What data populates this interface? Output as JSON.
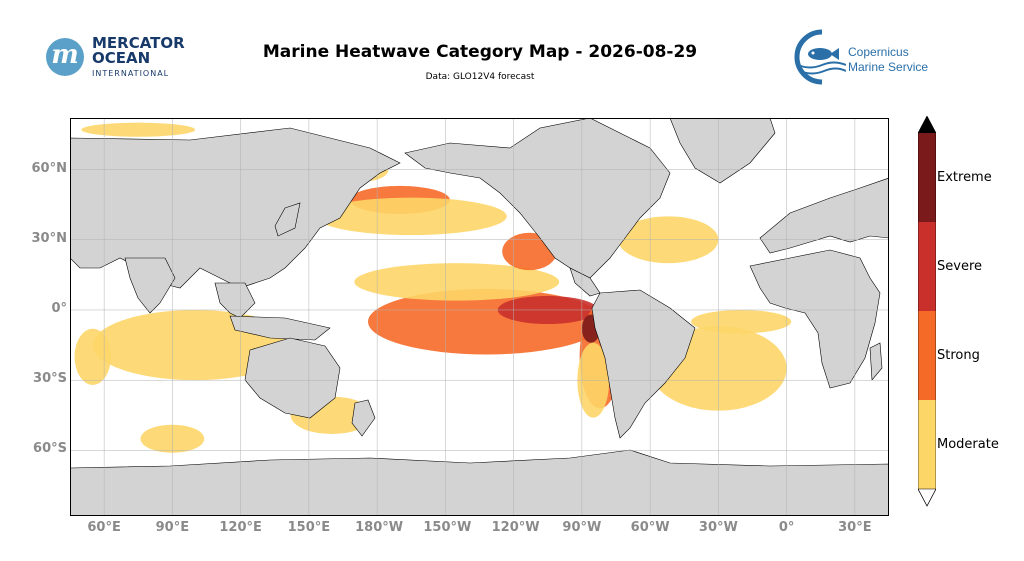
{
  "header": {
    "title": "Marine Heatwave Category Map - 2026-08-29",
    "subtitle": "Data: GLO12V4 forecast"
  },
  "logos": {
    "mercator": {
      "line1": "MERCATOR",
      "line2": "OCEAN",
      "line3": "INTERNATIONAL",
      "mark": "m"
    },
    "copernicus": {
      "line1": "Copernicus",
      "line2": "Marine Service"
    }
  },
  "map": {
    "projection": "equirectangular",
    "lon_range": [
      45,
      60
    ],
    "lat_range": [
      -80,
      80
    ],
    "land_color": "#d3d3d3",
    "ocean_color": "#ffffff",
    "lat_ticks": [
      {
        "value": 60,
        "label": "60°N"
      },
      {
        "value": 30,
        "label": "30°N"
      },
      {
        "value": 0,
        "label": "0°"
      },
      {
        "value": -30,
        "label": "30°S"
      },
      {
        "value": -60,
        "label": "60°S"
      }
    ],
    "lon_ticks": [
      {
        "value": 60,
        "label": "60°E"
      },
      {
        "value": 90,
        "label": "90°E"
      },
      {
        "value": 120,
        "label": "120°E"
      },
      {
        "value": 150,
        "label": "150°E"
      },
      {
        "value": 180,
        "label": "180°W"
      },
      {
        "value": 210,
        "label": "150°W"
      },
      {
        "value": 240,
        "label": "120°W"
      },
      {
        "value": 270,
        "label": "90°W"
      },
      {
        "value": 300,
        "label": "60°W"
      },
      {
        "value": 330,
        "label": "30°W"
      },
      {
        "value": 360,
        "label": "0°"
      },
      {
        "value": 390,
        "label": "30°E"
      }
    ],
    "heatwave_regions": [
      {
        "lon": 228,
        "lat": -5,
        "rlon": 52,
        "rlat": 14,
        "cat": 2
      },
      {
        "lon": 215,
        "lat": 12,
        "rlon": 45,
        "rlat": 8,
        "cat": 1
      },
      {
        "lon": 255,
        "lat": 0,
        "rlon": 22,
        "rlat": 6,
        "cat": 3
      },
      {
        "lon": 278,
        "lat": -20,
        "rlon": 9,
        "rlat": 22,
        "cat": 2
      },
      {
        "lon": 274,
        "lat": -8,
        "rlon": 4,
        "rlat": 6,
        "cat": 4
      },
      {
        "lon": 275,
        "lat": -30,
        "rlon": 7,
        "rlat": 16,
        "cat": 1
      },
      {
        "lon": 190,
        "lat": 47,
        "rlon": 22,
        "rlat": 6,
        "cat": 2
      },
      {
        "lon": 195,
        "lat": 40,
        "rlon": 42,
        "rlat": 8,
        "cat": 1
      },
      {
        "lon": 247,
        "lat": 25,
        "rlon": 12,
        "rlat": 8,
        "cat": 2
      },
      {
        "lon": 308,
        "lat": 30,
        "rlon": 22,
        "rlat": 10,
        "cat": 1
      },
      {
        "lon": 375,
        "lat": 38,
        "rlon": 8,
        "rlat": 3,
        "cat": 2
      },
      {
        "lon": 290,
        "lat": 62,
        "rlon": 10,
        "rlat": 8,
        "cat": 1
      },
      {
        "lon": 100,
        "lat": -15,
        "rlon": 45,
        "rlat": 15,
        "cat": 1
      },
      {
        "lon": 55,
        "lat": -20,
        "rlon": 8,
        "rlat": 12,
        "cat": 1
      },
      {
        "lon": 90,
        "lat": -55,
        "rlon": 14,
        "rlat": 6,
        "cat": 1
      },
      {
        "lon": 330,
        "lat": -25,
        "rlon": 30,
        "rlat": 18,
        "cat": 1
      },
      {
        "lon": 340,
        "lat": -5,
        "rlon": 22,
        "rlat": 5,
        "cat": 1
      },
      {
        "lon": 160,
        "lat": -45,
        "rlon": 18,
        "rlat": 8,
        "cat": 1
      },
      {
        "lon": 75,
        "lat": 77,
        "rlon": 25,
        "rlat": 3,
        "cat": 1
      },
      {
        "lon": 175,
        "lat": 60,
        "rlon": 10,
        "rlat": 5,
        "cat": 1
      }
    ]
  },
  "colorbar": {
    "labels": [
      "Moderate",
      "Strong",
      "Severe",
      "Extreme"
    ],
    "colors": [
      "#fdd668",
      "#f66a28",
      "#c9302c",
      "#7a1a1a"
    ],
    "extend_max_color": "#000000",
    "extend_min_color": "#ffffff"
  }
}
